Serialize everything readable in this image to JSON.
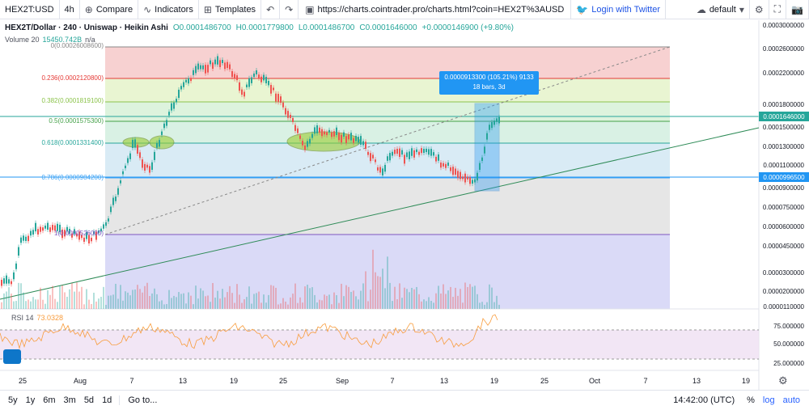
{
  "toolbar": {
    "symbol": "HEX2T:USD",
    "interval": "4h",
    "compare": "Compare",
    "indicators": "Indicators",
    "templates": "Templates",
    "url": "https://charts.cointrader.pro/charts.html?coin=HEX2T%3AUSD",
    "twitter": "Login with Twitter",
    "layout": "default",
    "icons": [
      "plus-circle-icon",
      "indicators-icon",
      "templates-icon",
      "undo-icon",
      "redo-icon",
      "url-icon",
      "twitter-icon",
      "cloud-icon",
      "gear-icon",
      "fullscreen-icon",
      "camera-icon"
    ]
  },
  "legend": {
    "title": "HEX2T/Dollar · 240 · Uniswap · Heikin Ashi",
    "o": "O0.0001486700",
    "h": "H0.0001779800",
    "l": "L0.0001486700",
    "c": "C0.0001646000",
    "change": "+0.0000146900 (+9.80%)"
  },
  "volume": {
    "label": "Volume 20",
    "value": "15450.742B",
    "extra": "n/a"
  },
  "rsi": {
    "label": "RSI 14",
    "value": "73.0328"
  },
  "fib": [
    {
      "label": "0(0.00026008600)"
    },
    {
      "label": "0.236(0.0002120800)"
    },
    {
      "label": "0.382(0.0001819100)"
    },
    {
      "label": "0.5(0.0001575300)"
    },
    {
      "label": "0.618(0.0001331400)"
    },
    {
      "label": "0.786(0.0000984200)"
    },
    {
      "label": "1(0.0000526000)"
    }
  ],
  "measure": {
    "line1": "0.0000913300 (105.21%) 9133",
    "line2": "18 bars, 3d"
  },
  "y_axis": [
    "0.0003000000",
    "0.0002600000",
    "0.0002200000",
    "0.0001800000",
    "0.0001500000",
    "0.0001300000",
    "0.0001100000",
    "0.0000900000",
    "0.0000750000",
    "0.0000600000",
    "0.0000450000",
    "0.0000300000",
    "0.0000200000",
    "0.0000110000"
  ],
  "price_badges": {
    "last": "0.0001646000",
    "level": "0.0000996500"
  },
  "rsi_axis": [
    "75.000000",
    "50.000000",
    "25.000000"
  ],
  "x_axis": [
    "25",
    "Aug",
    "7",
    "13",
    "19",
    "25",
    "Sep",
    "7",
    "13",
    "19",
    "25",
    "Oct",
    "7",
    "13",
    "19"
  ],
  "bottom": {
    "ranges": [
      "5y",
      "1y",
      "6m",
      "3m",
      "5d",
      "1d"
    ],
    "goto": "Go to...",
    "time": "14:42:00 (UTC)",
    "pct": "%",
    "log": "log",
    "auto": "auto"
  },
  "colors": {
    "up": "#26a69a",
    "down": "#ef5350",
    "rsi": "#f89c3c",
    "accent": "#2196f3"
  }
}
